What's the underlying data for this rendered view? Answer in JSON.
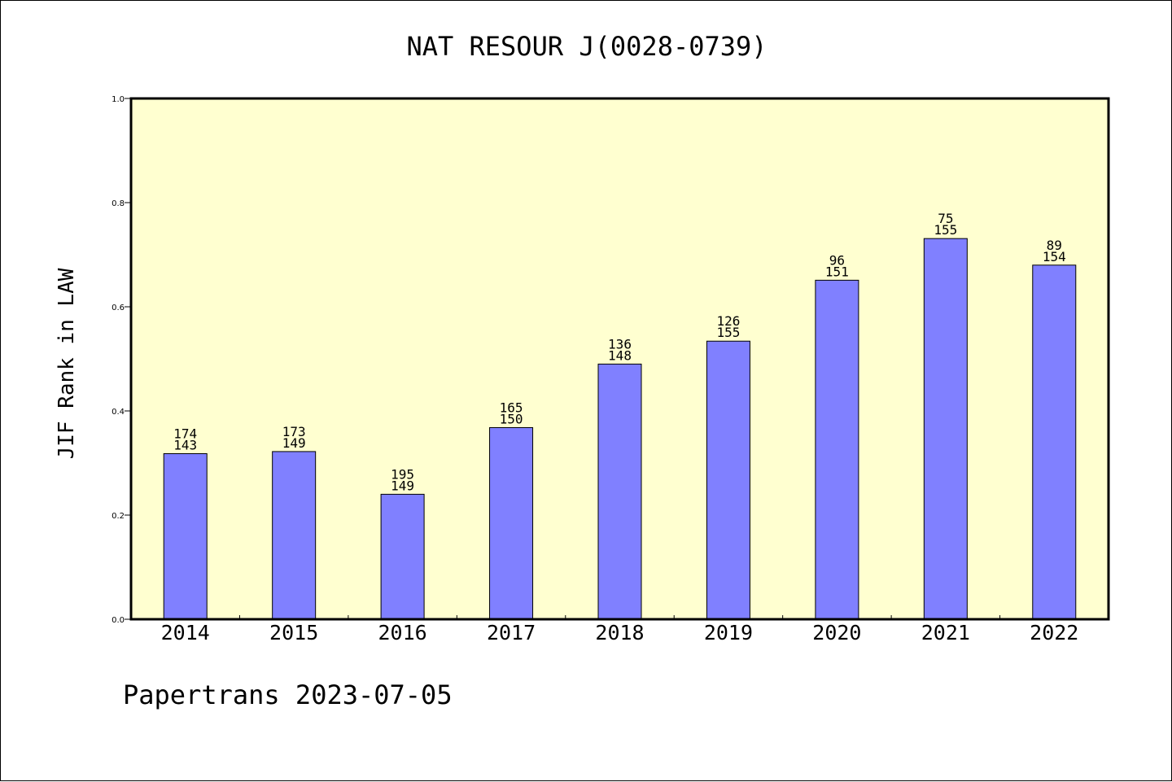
{
  "chart_data": {
    "type": "bar",
    "title": "NAT RESOUR J(0028-0739)",
    "ylabel": "JIF Rank in LAW",
    "xlabel": "",
    "ylim": [
      0,
      1.0
    ],
    "yticks": [
      "0.0",
      "0.2",
      "0.4",
      "0.6",
      "0.8",
      "1.0"
    ],
    "grid": false,
    "colors": {
      "plot_background": "#ffffd0",
      "bar_fill": "#8080ff",
      "bar_stroke": "#000000"
    },
    "categories": [
      "2014",
      "2015",
      "2016",
      "2017",
      "2018",
      "2019",
      "2020",
      "2021",
      "2022"
    ],
    "values": [
      0.318,
      0.322,
      0.24,
      0.368,
      0.49,
      0.534,
      0.651,
      0.731,
      0.68
    ],
    "rank": [
      "174",
      "173",
      "195",
      "165",
      "136",
      "126",
      "96",
      "75",
      "89"
    ],
    "total": [
      "143",
      "149",
      "149",
      "150",
      "148",
      "155",
      "151",
      "155",
      "154"
    ]
  },
  "footer": "Papertrans 2023-07-05"
}
